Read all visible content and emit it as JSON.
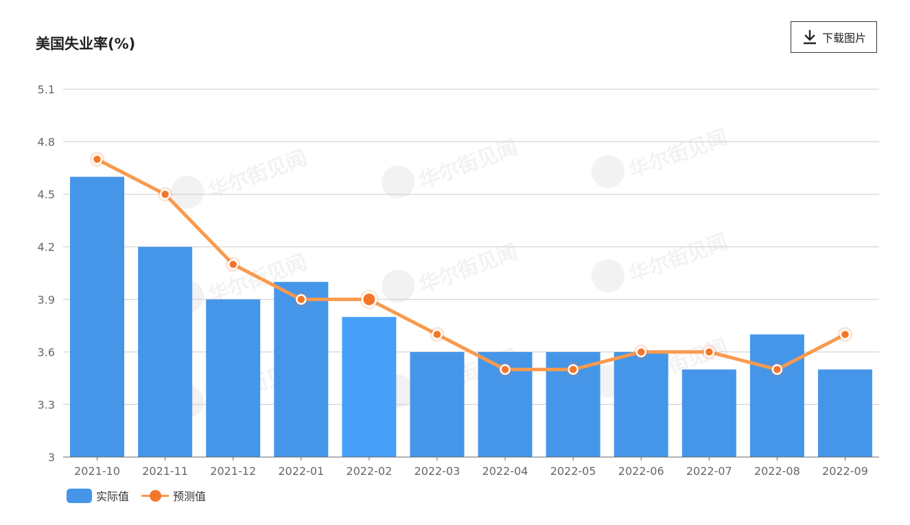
{
  "header": {
    "title": "美国失业率(%)",
    "download_label": "下载图片",
    "download_icon": "download-icon"
  },
  "watermark": {
    "text": "华尔街见闻"
  },
  "colors": {
    "bar": "#4596e9",
    "bar_highlight": "#47a0f8",
    "line": "#f89a4d",
    "dot": "#f5762a",
    "grid": "#cccccc",
    "axis": "#666666"
  },
  "legend": {
    "actual_label": "实际值",
    "forecast_label": "预测值"
  },
  "chart_data": {
    "type": "bar",
    "title": "美国失业率(%)",
    "categories": [
      "2021-10",
      "2021-11",
      "2021-12",
      "2022-01",
      "2022-02",
      "2022-03",
      "2022-04",
      "2022-05",
      "2022-06",
      "2022-07",
      "2022-08",
      "2022-09"
    ],
    "series": [
      {
        "name": "实际值",
        "type": "bar",
        "values": [
          4.6,
          4.2,
          3.9,
          4.0,
          3.8,
          3.6,
          3.6,
          3.6,
          3.6,
          3.5,
          3.7,
          3.5
        ]
      },
      {
        "name": "预测值",
        "type": "line",
        "values": [
          4.7,
          4.5,
          4.1,
          3.9,
          3.9,
          3.7,
          3.5,
          3.5,
          3.6,
          3.6,
          3.5,
          3.7
        ]
      }
    ],
    "y_ticks": [
      "3",
      "3.3",
      "3.6",
      "3.9",
      "4.2",
      "4.5",
      "4.8",
      "5.1"
    ],
    "ylim": [
      3,
      5.1
    ],
    "xlabel": "",
    "ylabel": "",
    "grid": true,
    "legend_position": "bottom-left",
    "highlighted_category": "2022-02"
  }
}
